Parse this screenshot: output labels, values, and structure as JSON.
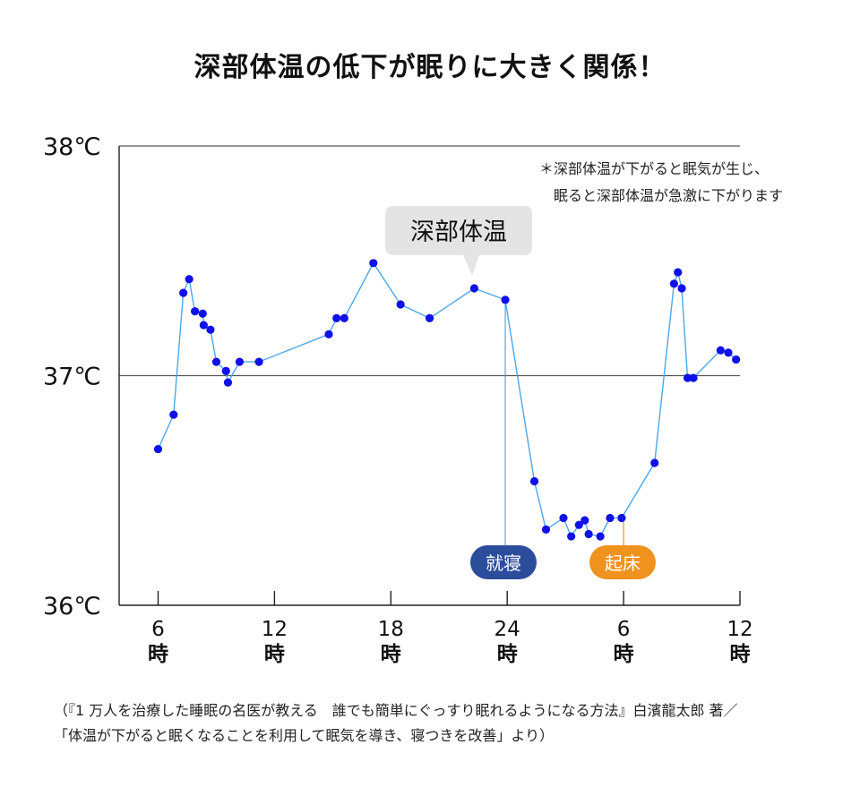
{
  "title": "深部体温の低下が眠りに大きく関係！",
  "note_lines": [
    "＊深部体温が下がると眠気が生じ、",
    "眠ると深部体温が急激に下がります"
  ],
  "callout": "深部体温",
  "events": {
    "sleep": "就寝",
    "wake": "起床"
  },
  "source_lines": [
    "（『1 万人を治療した睡眠の名医が教える　誰でも簡単にぐっすり眠れるようになる方法』白濱龍太郎 著／",
    "「体温が下がると眠くなることを利用して眠気を導き、寝つきを改善」より）"
  ],
  "colors": {
    "line": "#4aa8e8",
    "point": "#1010e8",
    "sleep_tag": "#2b4d9b",
    "wake_tag": "#f0921e",
    "callout_bg": "#e4e4e4"
  },
  "chart_data": {
    "type": "line",
    "ylim": [
      36,
      38
    ],
    "y_ticks": [
      "36℃",
      "37℃",
      "38℃"
    ],
    "x_ticks": [
      {
        "hour": 6,
        "label": "6",
        "unit": "時"
      },
      {
        "hour": 12,
        "label": "12",
        "unit": "時"
      },
      {
        "hour": 18,
        "label": "18",
        "unit": "時"
      },
      {
        "hour": 24,
        "label": "24",
        "unit": "時"
      },
      {
        "hour": 30,
        "label": "6",
        "unit": "時"
      },
      {
        "hour": 36,
        "label": "12",
        "unit": "時"
      }
    ],
    "grid_lines": [
      37,
      38
    ],
    "sleep_hour": 23.9,
    "wake_hour": 30,
    "series": [
      {
        "x": [
          6.0,
          6.8,
          7.3,
          7.6,
          7.9,
          8.3,
          8.35,
          8.7,
          9.0,
          9.5,
          9.6,
          10.2,
          11.2,
          14.8,
          15.2,
          15.6,
          17.1,
          18.5,
          20.0,
          22.3,
          23.9,
          25.4,
          26.0,
          26.9,
          27.3,
          27.7,
          28.0,
          28.2,
          28.8,
          29.3,
          29.9,
          31.6,
          32.6,
          32.8,
          33.0,
          33.3,
          33.6,
          35.0,
          35.4,
          35.8
        ],
        "y": [
          36.68,
          36.83,
          37.36,
          37.42,
          37.28,
          37.27,
          37.22,
          37.2,
          37.06,
          37.02,
          36.97,
          37.06,
          37.06,
          37.18,
          37.25,
          37.25,
          37.49,
          37.31,
          37.25,
          37.38,
          37.33,
          36.54,
          36.33,
          36.38,
          36.3,
          36.35,
          36.37,
          36.31,
          36.3,
          36.38,
          36.38,
          36.62,
          37.4,
          37.45,
          37.38,
          36.99,
          36.99,
          37.11,
          37.1,
          37.07
        ]
      }
    ]
  }
}
